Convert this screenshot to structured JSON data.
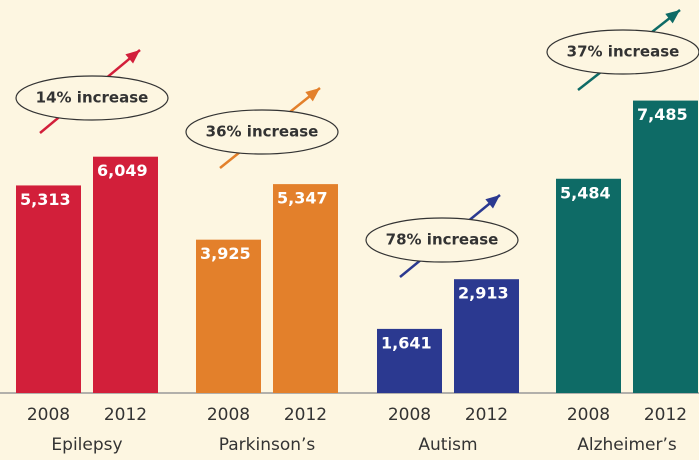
{
  "chart_data": {
    "type": "bar",
    "x_labels": [
      "2008",
      "2012"
    ],
    "ylim": [
      0,
      7500
    ],
    "groups": [
      {
        "name": "Epilepsy",
        "color": "#d21f3a",
        "values": [
          5313,
          6049
        ],
        "value_labels": [
          "5,313",
          "6,049"
        ],
        "annotation": "14% increase"
      },
      {
        "name": "Parkinson’s",
        "color": "#e3802b",
        "values": [
          3925,
          5347
        ],
        "value_labels": [
          "3,925",
          "5,347"
        ],
        "annotation": "36% increase"
      },
      {
        "name": "Autism",
        "color": "#2b3990",
        "values": [
          1641,
          2913
        ],
        "value_labels": [
          "1,641",
          "2,913"
        ],
        "annotation": "78% increase"
      },
      {
        "name": "Alzheimer’s",
        "color": "#0e6b66",
        "values": [
          5484,
          7485
        ],
        "value_labels": [
          "5,484",
          "7,485"
        ],
        "annotation": "37% increase"
      }
    ]
  }
}
